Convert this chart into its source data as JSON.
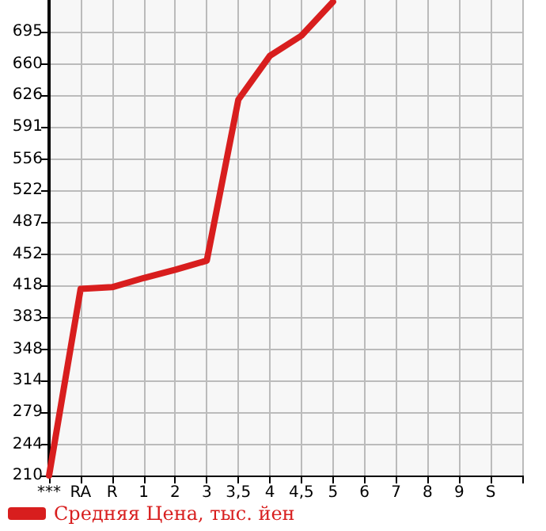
{
  "chart_data": {
    "type": "line",
    "categories": [
      "***",
      "RA",
      "R",
      "1",
      "2",
      "3",
      "3,5",
      "4",
      "4,5",
      "5",
      "6",
      "7",
      "8",
      "9",
      "S",
      null
    ],
    "series": [
      {
        "name": "Средняя Цена, тыс. йен",
        "color": "#d81e1e",
        "values": [
          210,
          414,
          416,
          426,
          435,
          445,
          621,
          669,
          691,
          728,
          null,
          null,
          null,
          null,
          null,
          null
        ]
      }
    ],
    "ylim": [
      210,
      730
    ],
    "yticks": [
      210,
      244,
      279,
      314,
      348,
      383,
      418,
      452,
      487,
      522,
      556,
      591,
      626,
      660,
      695
    ],
    "grid": true,
    "legend": "bottom left",
    "marker": "none",
    "line_style": "solid"
  }
}
